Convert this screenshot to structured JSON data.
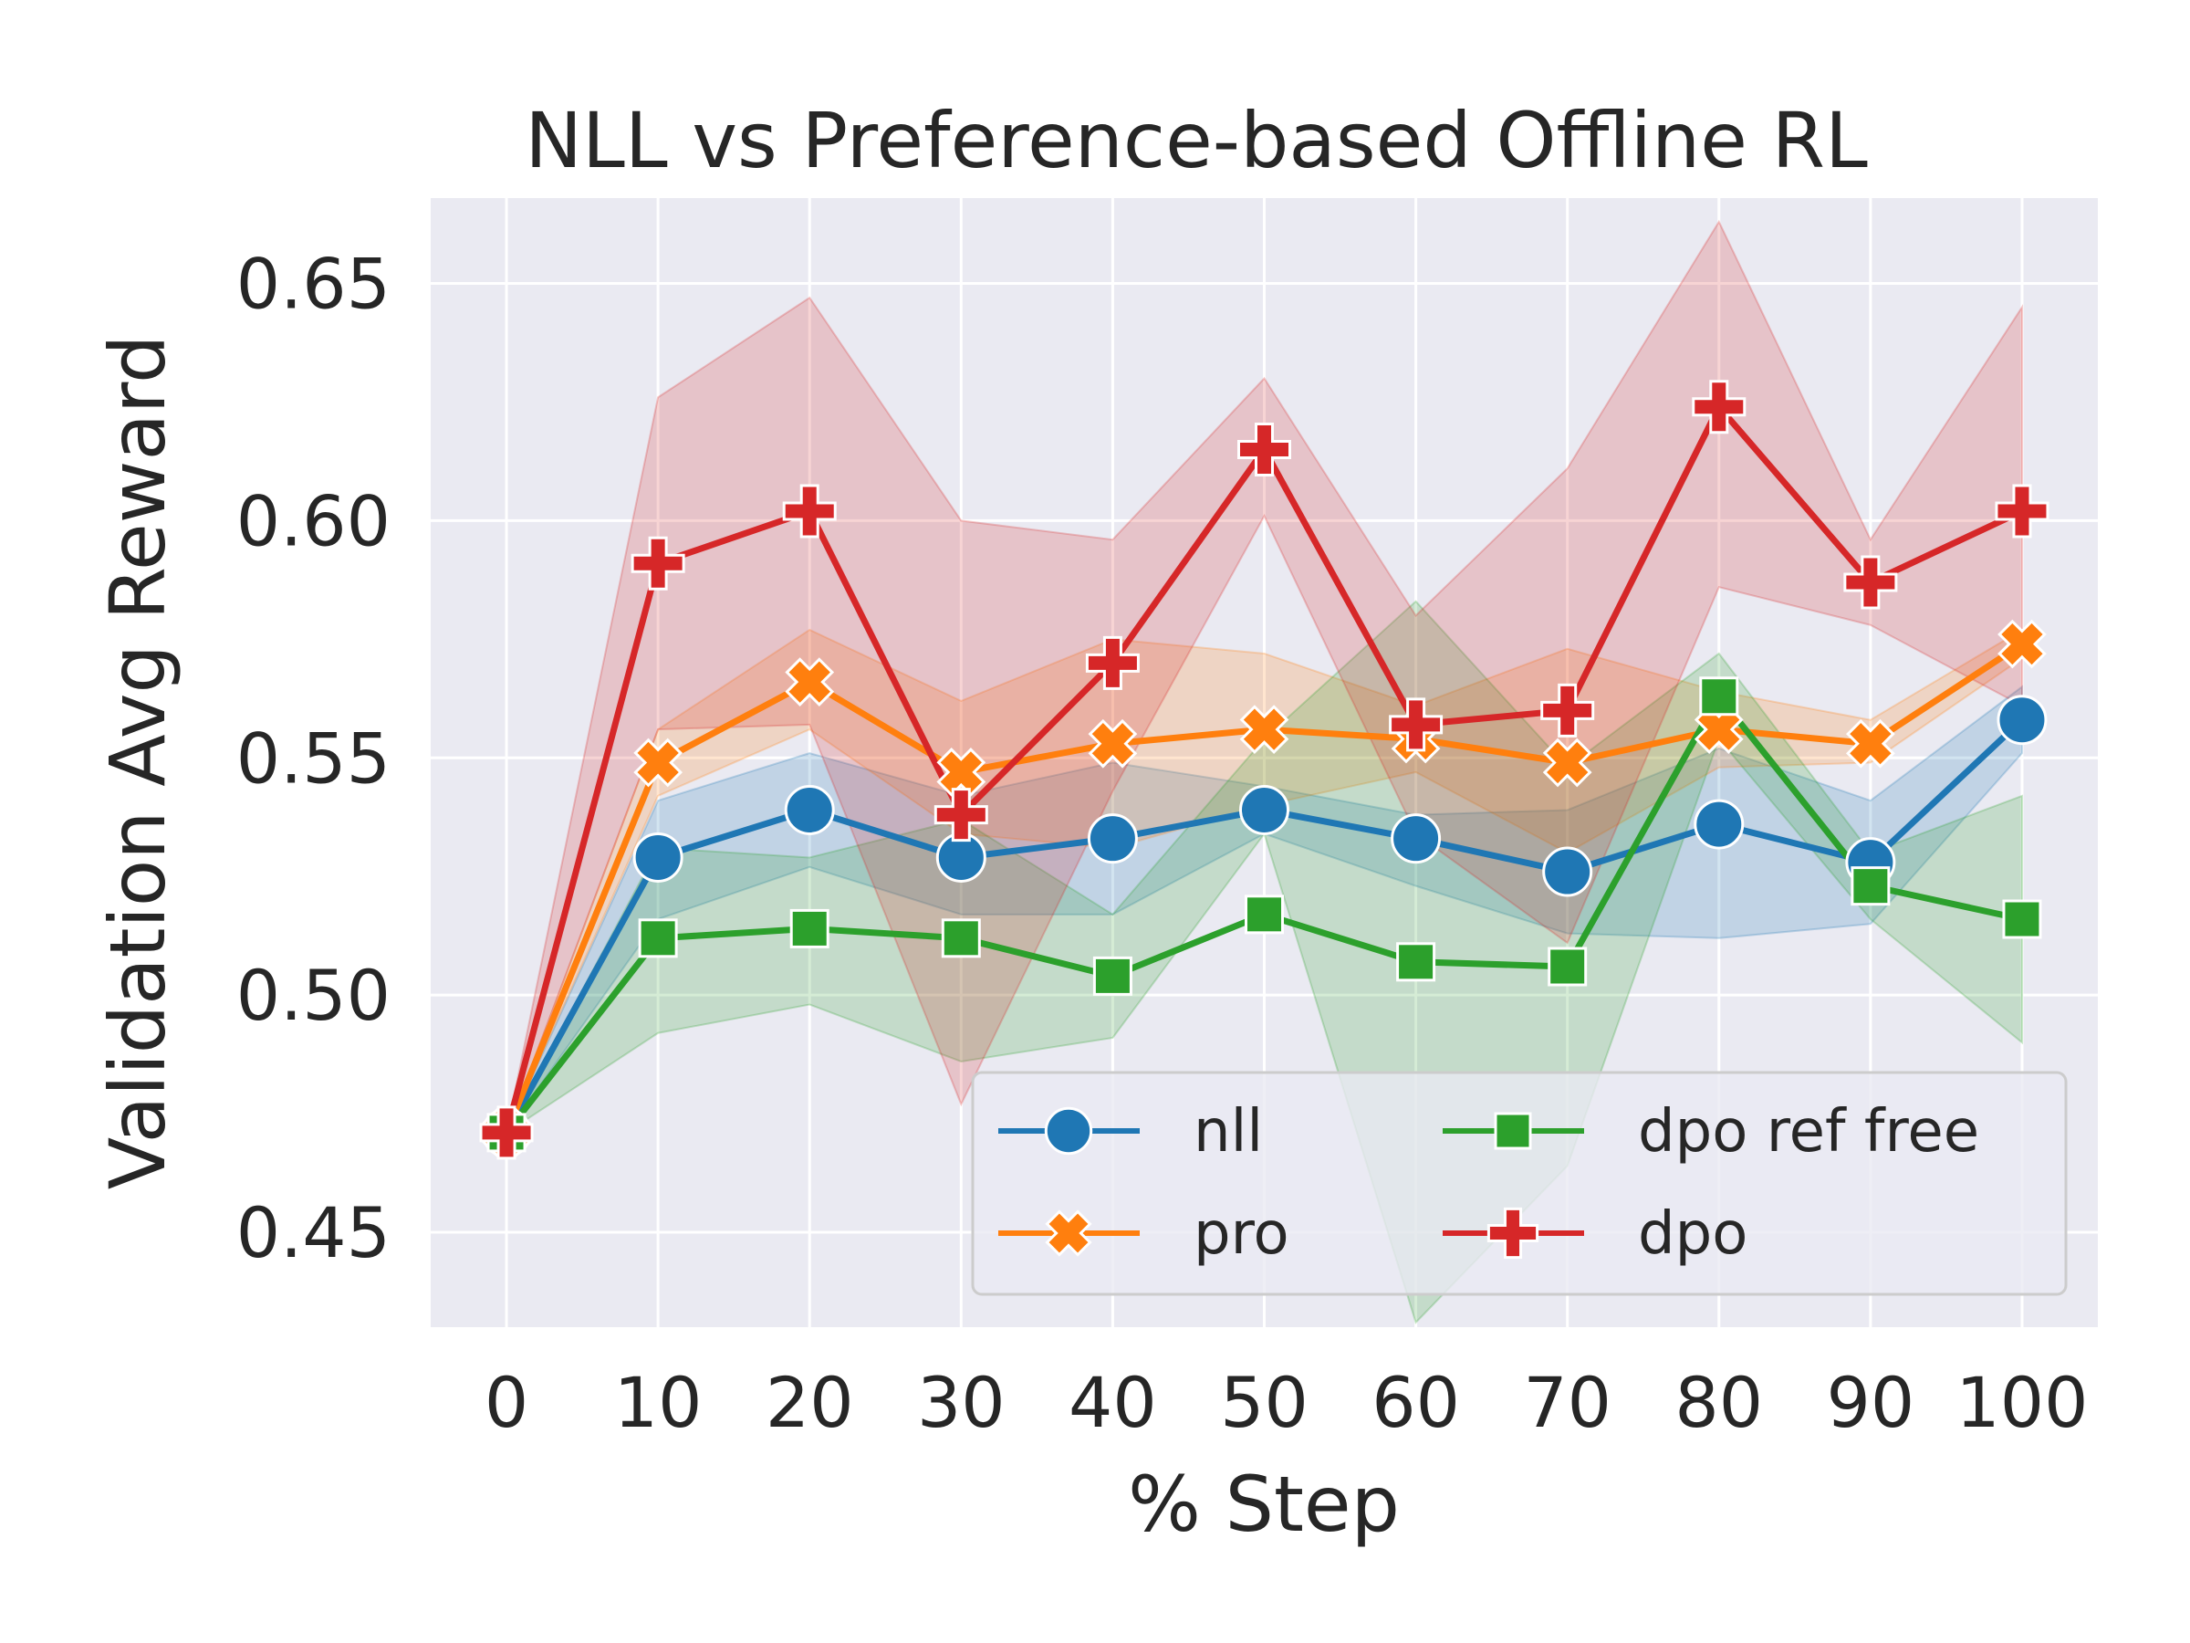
{
  "chart_data": {
    "type": "line",
    "title": "NLL vs Preference-based Offline RL",
    "xlabel": "% Step",
    "ylabel": "Validation Avg Reward",
    "x": [
      0,
      10,
      20,
      30,
      40,
      50,
      60,
      70,
      80,
      90,
      100
    ],
    "xlim": [
      -5,
      105
    ],
    "ylim": [
      0.43,
      0.668
    ],
    "yticks": [
      0.45,
      0.5,
      0.55,
      0.6,
      0.65
    ],
    "ytick_labels": [
      "0.45",
      "0.50",
      "0.55",
      "0.60",
      "0.65"
    ],
    "xtick_labels": [
      "0",
      "10",
      "20",
      "30",
      "40",
      "50",
      "60",
      "70",
      "80",
      "90",
      "100"
    ],
    "grid": true,
    "legend_position": "lower-right",
    "series": [
      {
        "name": "nll",
        "color": "#1f77b4",
        "marker": "circle",
        "values": [
          0.471,
          0.529,
          0.539,
          0.529,
          0.533,
          0.539,
          0.533,
          0.526,
          0.536,
          0.528,
          0.558
        ],
        "lower": [
          0.471,
          0.516,
          0.527,
          0.517,
          0.517,
          0.534,
          0.523,
          0.513,
          0.512,
          0.515,
          0.551
        ],
        "upper": [
          0.471,
          0.541,
          0.551,
          0.542,
          0.549,
          0.544,
          0.538,
          0.539,
          0.552,
          0.541,
          0.565
        ]
      },
      {
        "name": "pro",
        "color": "#ff7f0e",
        "marker": "x",
        "values": [
          0.471,
          0.549,
          0.566,
          0.547,
          0.553,
          0.556,
          0.554,
          0.549,
          0.556,
          0.553,
          0.574
        ],
        "lower": [
          0.471,
          0.542,
          0.556,
          0.534,
          0.531,
          0.54,
          0.547,
          0.53,
          0.548,
          0.549,
          0.571
        ],
        "upper": [
          0.471,
          0.556,
          0.577,
          0.562,
          0.575,
          0.572,
          0.561,
          0.573,
          0.564,
          0.558,
          0.577
        ]
      },
      {
        "name": "dpo ref free",
        "color": "#2ca02c",
        "marker": "square",
        "values": [
          0.471,
          0.512,
          0.514,
          0.512,
          0.504,
          0.517,
          0.507,
          0.506,
          0.563,
          0.523,
          0.516
        ],
        "lower": [
          0.471,
          0.492,
          0.498,
          0.486,
          0.491,
          0.534,
          0.431,
          0.464,
          0.554,
          0.516,
          0.49
        ],
        "upper": [
          0.471,
          0.531,
          0.529,
          0.537,
          0.517,
          0.554,
          0.583,
          0.548,
          0.572,
          0.53,
          0.542
        ]
      },
      {
        "name": "dpo",
        "color": "#d62728",
        "marker": "plus",
        "values": [
          0.471,
          0.591,
          0.602,
          0.538,
          0.57,
          0.615,
          0.557,
          0.56,
          0.624,
          0.587,
          0.602
        ],
        "lower": [
          0.471,
          0.556,
          0.557,
          0.477,
          0.543,
          0.601,
          0.534,
          0.511,
          0.586,
          0.578,
          0.561
        ],
        "upper": [
          0.471,
          0.626,
          0.647,
          0.6,
          0.596,
          0.63,
          0.58,
          0.611,
          0.663,
          0.596,
          0.645
        ]
      }
    ]
  }
}
